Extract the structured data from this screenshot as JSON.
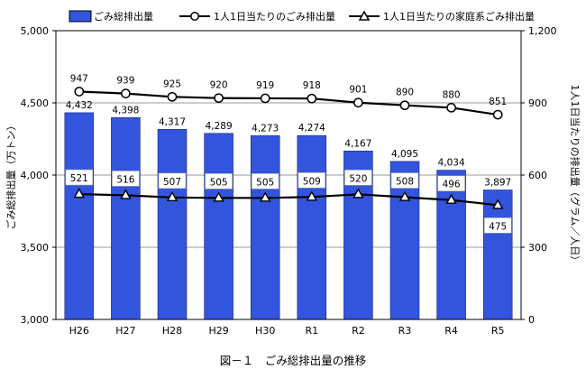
{
  "chart_data": {
    "type": "bar",
    "caption": "図－１　ごみ総排出量の推移",
    "categories": [
      "H26",
      "H27",
      "H28",
      "H29",
      "H30",
      "R1",
      "R2",
      "R3",
      "R4",
      "R5"
    ],
    "series": [
      {
        "name": "ごみ総排出量",
        "kind": "bar",
        "axis": "left",
        "values": [
          4432,
          4398,
          4317,
          4289,
          4273,
          4274,
          4167,
          4095,
          4034,
          3897
        ],
        "labels": [
          "4,432",
          "4,398",
          "4,317",
          "4,289",
          "4,273",
          "4,274",
          "4,167",
          "4,095",
          "4,034",
          "3,897"
        ],
        "color": "#3355dd"
      },
      {
        "name": "1人1日当たりのごみ排出量",
        "kind": "line",
        "marker": "circle",
        "axis": "right",
        "values": [
          947,
          939,
          925,
          920,
          919,
          918,
          901,
          890,
          880,
          851
        ],
        "labels": [
          "947",
          "939",
          "925",
          "920",
          "919",
          "918",
          "901",
          "890",
          "880",
          "851"
        ]
      },
      {
        "name": "1人1日当たりの家庭系ごみ排出量",
        "kind": "line",
        "marker": "triangle",
        "axis": "right",
        "values": [
          521,
          516,
          507,
          505,
          505,
          509,
          520,
          508,
          496,
          475
        ],
        "labels": [
          "521",
          "516",
          "507",
          "505",
          "505",
          "509",
          "520",
          "508",
          "496",
          "475"
        ]
      }
    ],
    "left_axis": {
      "title": "ごみ総排出量（万トン）",
      "min": 3000,
      "max": 5000,
      "ticks": [
        3000,
        3500,
        4000,
        4500,
        5000
      ],
      "tick_labels": [
        "3,000",
        "3,500",
        "4,000",
        "4,500",
        "5,000"
      ]
    },
    "right_axis": {
      "title": "1人1日当たりの排出量（グラム／人日）",
      "min": 0,
      "max": 1200,
      "ticks": [
        0,
        300,
        600,
        900,
        1200
      ],
      "tick_labels": [
        "0",
        "300",
        "600",
        "900",
        "1,200"
      ]
    },
    "grid": true,
    "legend_position": "top"
  }
}
